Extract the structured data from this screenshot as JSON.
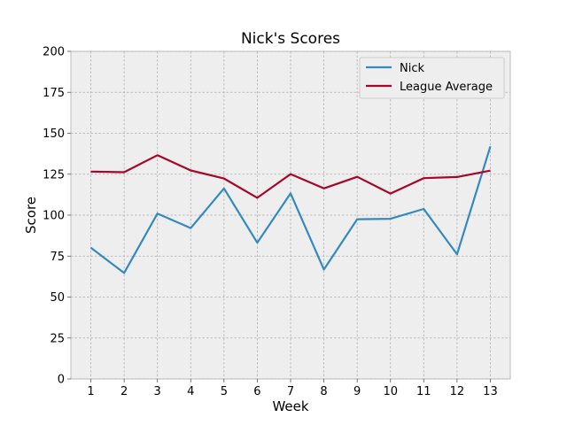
{
  "chart_data": {
    "type": "line",
    "title": "Nick's Scores",
    "xlabel": "Week",
    "ylabel": "Score",
    "x": [
      1,
      2,
      3,
      4,
      5,
      6,
      7,
      8,
      9,
      10,
      11,
      12,
      13
    ],
    "xticks": [
      "1",
      "2",
      "3",
      "4",
      "5",
      "6",
      "7",
      "8",
      "9",
      "10",
      "11",
      "12",
      "13"
    ],
    "xlim": [
      0.4,
      13.6
    ],
    "ylim": [
      0,
      200
    ],
    "yticks": [
      "0",
      "25",
      "50",
      "75",
      "100",
      "125",
      "150",
      "175",
      "200"
    ],
    "grid": true,
    "legend_position": "top-right",
    "series": [
      {
        "name": "Nick",
        "color": "#348ABD",
        "values": [
          80.1,
          64.7,
          101.0,
          92.1,
          116.3,
          83.2,
          113.3,
          66.8,
          97.5,
          97.8,
          103.8,
          76.1,
          142.0
        ]
      },
      {
        "name": "League Average",
        "color": "#A60628",
        "values": [
          126.6,
          126.2,
          136.6,
          127.3,
          122.4,
          110.6,
          125.1,
          116.3,
          123.4,
          113.2,
          122.6,
          123.3,
          127.2
        ]
      }
    ],
    "background_color": "#EEEEEE"
  }
}
